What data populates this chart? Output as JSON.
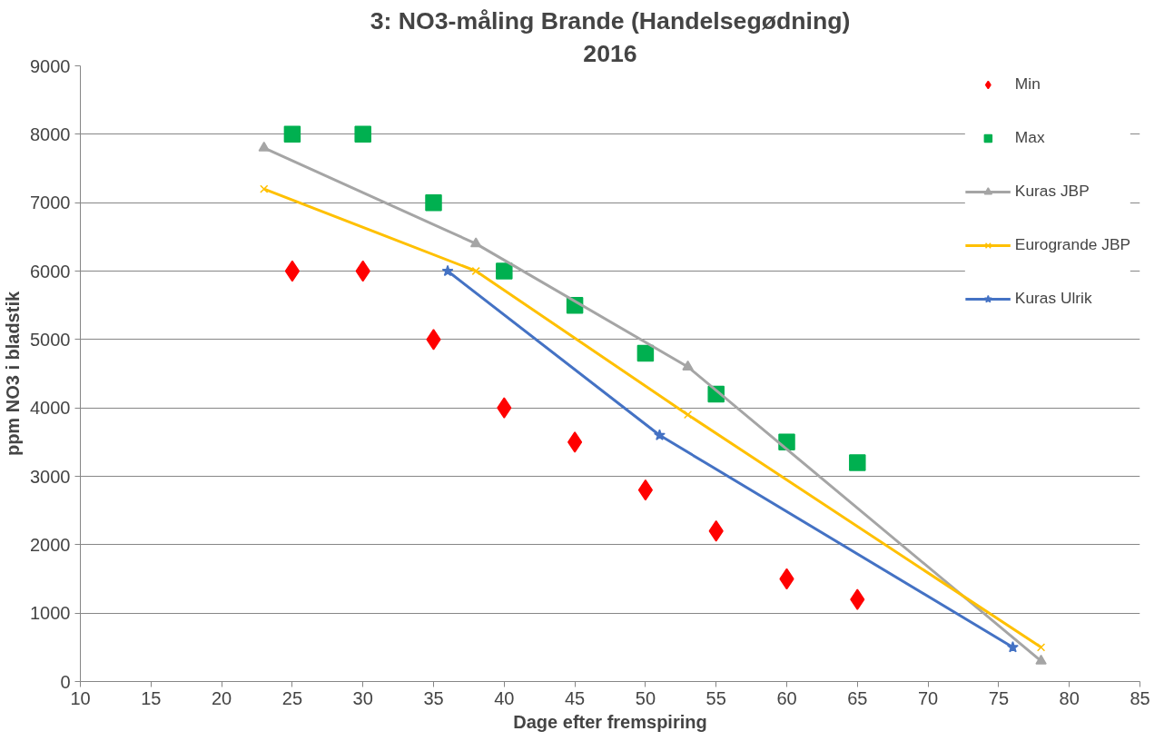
{
  "chart_data": {
    "type": "line",
    "title": "3: NO3-måling Brande (Handelsegødning)",
    "subtitle": "2016",
    "xlabel": "Dage efter fremspiring",
    "ylabel": "ppm NO3 i bladstik",
    "xlim": [
      10,
      85
    ],
    "xticks": [
      10,
      15,
      20,
      25,
      30,
      35,
      40,
      45,
      50,
      55,
      60,
      65,
      70,
      75,
      80,
      85
    ],
    "ylim": [
      0,
      9000
    ],
    "yticks": [
      0,
      1000,
      2000,
      3000,
      4000,
      5000,
      6000,
      7000,
      8000,
      9000
    ],
    "grid": "y",
    "legend": "top right",
    "line_style": "solid",
    "series": [
      {
        "name": "Min",
        "type": "scatter",
        "marker": "diamond",
        "color": "#ff0000",
        "x": [
          25,
          30,
          35,
          40,
          45,
          50,
          55,
          60,
          65
        ],
        "values": [
          6000,
          6000,
          5000,
          4000,
          3500,
          2800,
          2200,
          1500,
          1200
        ]
      },
      {
        "name": "Max",
        "type": "scatter",
        "marker": "square",
        "color": "#00b050",
        "x": [
          25,
          30,
          35,
          40,
          45,
          50,
          55,
          60,
          65
        ],
        "values": [
          8000,
          8000,
          7000,
          6000,
          5500,
          4800,
          4200,
          3500,
          3200
        ]
      },
      {
        "name": "Kuras JBP",
        "marker": "triangle",
        "color": "#a5a5a5",
        "x": [
          23,
          38,
          53,
          78
        ],
        "values": [
          7800,
          6400,
          4600,
          300
        ]
      },
      {
        "name": "Eurogrande JBP",
        "marker": "cross",
        "color": "#ffc000",
        "x": [
          23,
          38,
          53,
          78
        ],
        "values": [
          7200,
          6000,
          3900,
          500
        ]
      },
      {
        "name": "Kuras Ulrik",
        "marker": "star",
        "color": "#4472c4",
        "x": [
          36,
          51,
          76
        ],
        "values": [
          6000,
          3600,
          500
        ]
      }
    ]
  }
}
